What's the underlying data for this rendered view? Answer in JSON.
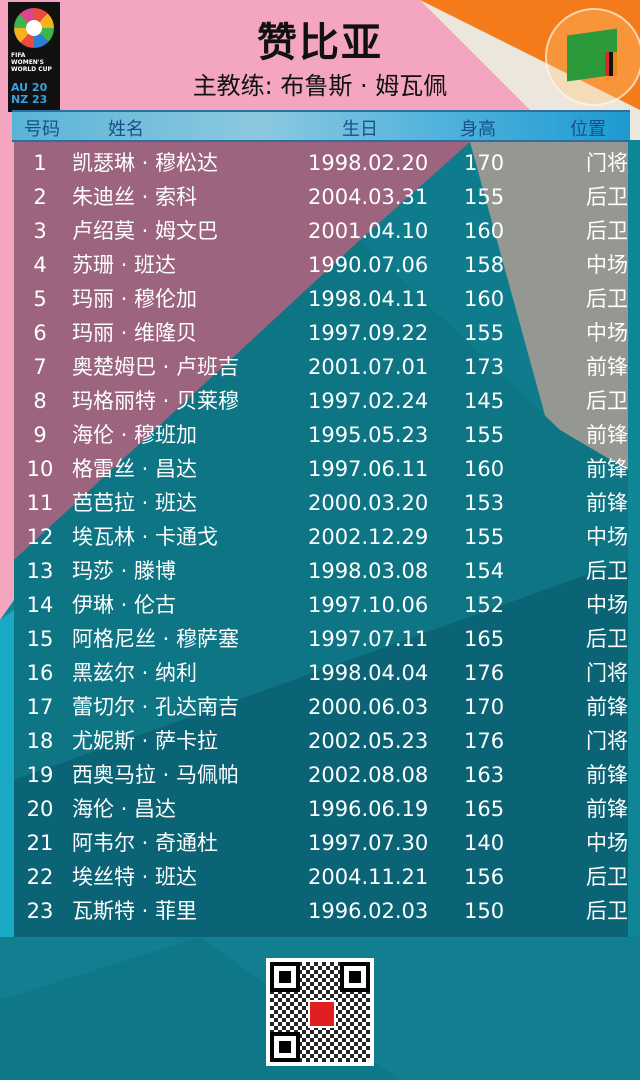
{
  "header": {
    "logo_text": "FIFA WOMEN'S WORLD CUP AU NZ 2023",
    "title": "赞比亚",
    "coach": "主教练: 布鲁斯 · 姆瓦佩",
    "flag_icon": "zambia-flag-icon"
  },
  "columns": [
    "号码",
    "姓名",
    "生日",
    "身高",
    "位置"
  ],
  "players": [
    {
      "no": "1",
      "name": "凯瑟琳 · 穆松达",
      "birth": "1998.02.20",
      "height": "170",
      "pos": "门将"
    },
    {
      "no": "2",
      "name": "朱迪丝 · 索科",
      "birth": "2004.03.31",
      "height": "155",
      "pos": "后卫"
    },
    {
      "no": "3",
      "name": "卢绍莫 · 姆文巴",
      "birth": "2001.04.10",
      "height": "160",
      "pos": "后卫"
    },
    {
      "no": "4",
      "name": "苏珊 · 班达",
      "birth": "1990.07.06",
      "height": "158",
      "pos": "中场"
    },
    {
      "no": "5",
      "name": "玛丽 · 穆伦加",
      "birth": "1998.04.11",
      "height": "160",
      "pos": "后卫"
    },
    {
      "no": "6",
      "name": "玛丽 · 维隆贝",
      "birth": "1997.09.22",
      "height": "155",
      "pos": "中场"
    },
    {
      "no": "7",
      "name": "奥楚姆巴 · 卢班吉",
      "birth": "2001.07.01",
      "height": "173",
      "pos": "前锋"
    },
    {
      "no": "8",
      "name": "玛格丽特 · 贝莱穆",
      "birth": "1997.02.24",
      "height": "145",
      "pos": "后卫"
    },
    {
      "no": "9",
      "name": "海伦 · 穆班加",
      "birth": "1995.05.23",
      "height": "155",
      "pos": "前锋"
    },
    {
      "no": "10",
      "name": "格雷丝 · 昌达",
      "birth": "1997.06.11",
      "height": "160",
      "pos": "前锋"
    },
    {
      "no": "11",
      "name": "芭芭拉 · 班达",
      "birth": "2000.03.20",
      "height": "153",
      "pos": "前锋"
    },
    {
      "no": "12",
      "name": "埃瓦林 · 卡通戈",
      "birth": "2002.12.29",
      "height": "155",
      "pos": "中场"
    },
    {
      "no": "13",
      "name": "玛莎 · 滕博",
      "birth": "1998.03.08",
      "height": "154",
      "pos": "后卫"
    },
    {
      "no": "14",
      "name": "伊琳 · 伦古",
      "birth": "1997.10.06",
      "height": "152",
      "pos": "中场"
    },
    {
      "no": "15",
      "name": "阿格尼丝 · 穆萨塞",
      "birth": "1997.07.11",
      "height": "165",
      "pos": "后卫"
    },
    {
      "no": "16",
      "name": "黑兹尔 · 纳利",
      "birth": "1998.04.04",
      "height": "176",
      "pos": "门将"
    },
    {
      "no": "17",
      "name": "蕾切尔 · 孔达南吉",
      "birth": "2000.06.03",
      "height": "170",
      "pos": "前锋"
    },
    {
      "no": "18",
      "name": "尤妮斯 · 萨卡拉",
      "birth": "2002.05.23",
      "height": "176",
      "pos": "门将"
    },
    {
      "no": "19",
      "name": "西奥马拉 · 马佩帕",
      "birth": "2002.08.08",
      "height": "163",
      "pos": "前锋"
    },
    {
      "no": "20",
      "name": "海伦 · 昌达",
      "birth": "1996.06.19",
      "height": "165",
      "pos": "前锋"
    },
    {
      "no": "21",
      "name": "阿韦尔 · 奇通杜",
      "birth": "1997.07.30",
      "height": "140",
      "pos": "中场"
    },
    {
      "no": "22",
      "name": "埃丝特 · 班达",
      "birth": "2004.11.21",
      "height": "156",
      "pos": "后卫"
    },
    {
      "no": "23",
      "name": "瓦斯特 · 菲里",
      "birth": "1996.02.03",
      "height": "150",
      "pos": "后卫"
    }
  ],
  "colors": {
    "pink": "#f4a6c0",
    "teal": "#0f8696",
    "orange": "#f47a1a",
    "cream": "#ece6dc",
    "header_blue": "#4fb2dc"
  },
  "footer": {
    "qr_icon": "qr-code-icon"
  }
}
